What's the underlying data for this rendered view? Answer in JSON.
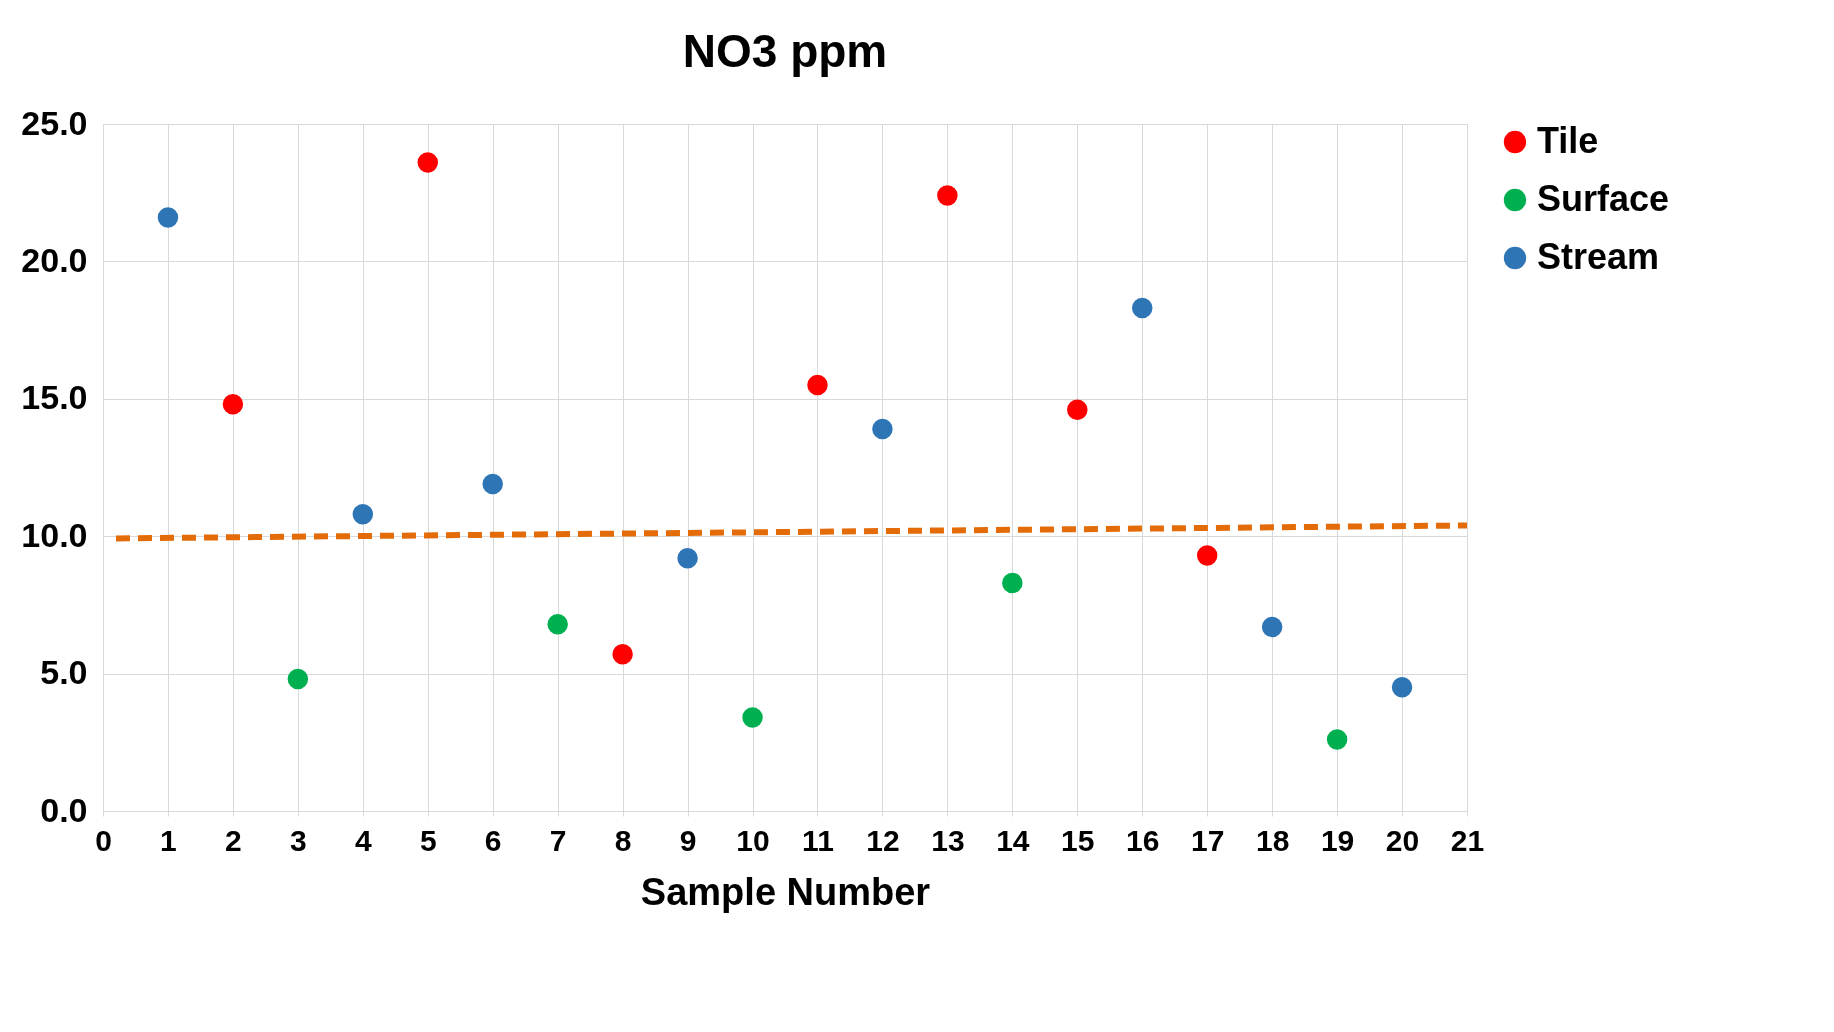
{
  "chart_data": {
    "type": "scatter",
    "title": "NO3 ppm",
    "xlabel": "Sample Number",
    "x": [
      1,
      2,
      3,
      4,
      5,
      6,
      7,
      8,
      9,
      10,
      11,
      12,
      13,
      14,
      15,
      16,
      17,
      18,
      19,
      20
    ],
    "series": [
      {
        "name": "Tile",
        "color": "#ff0000",
        "values": [
          null,
          14.8,
          null,
          null,
          23.6,
          null,
          null,
          5.7,
          null,
          null,
          15.5,
          null,
          22.4,
          null,
          14.6,
          null,
          9.3,
          null,
          null,
          null
        ]
      },
      {
        "name": "Surface",
        "color": "#00b050",
        "values": [
          null,
          null,
          4.8,
          null,
          null,
          null,
          6.8,
          null,
          null,
          3.4,
          null,
          null,
          null,
          8.3,
          null,
          null,
          null,
          null,
          2.6,
          null
        ]
      },
      {
        "name": "Stream",
        "color": "#2e75b6",
        "values": [
          21.6,
          null,
          null,
          10.8,
          null,
          11.9,
          null,
          null,
          9.2,
          null,
          null,
          13.9,
          null,
          null,
          null,
          18.3,
          null,
          6.7,
          null,
          4.5
        ]
      },
      {
        "type": "line",
        "color": "#e36c09",
        "line_style": "dashed",
        "marker": "none",
        "x": [
          0.2,
          21
        ],
        "values": [
          9.92,
          10.39
        ]
      }
    ],
    "marker": "circle",
    "xlim": [
      0,
      21
    ],
    "xticks": [
      0,
      1,
      2,
      3,
      4,
      5,
      6,
      7,
      8,
      9,
      10,
      11,
      12,
      13,
      14,
      15,
      16,
      17,
      18,
      19,
      20,
      21
    ],
    "ylim": [
      0,
      25
    ],
    "yticks": [
      {
        "value": 0,
        "label": "0.0"
      },
      {
        "value": 5,
        "label": "5.0"
      },
      {
        "value": 10,
        "label": "10.0"
      },
      {
        "value": 15,
        "label": "15.0"
      },
      {
        "value": 20,
        "label": "20.0"
      },
      {
        "value": 25,
        "label": "25.0"
      }
    ],
    "grid": true,
    "legend": "right"
  }
}
